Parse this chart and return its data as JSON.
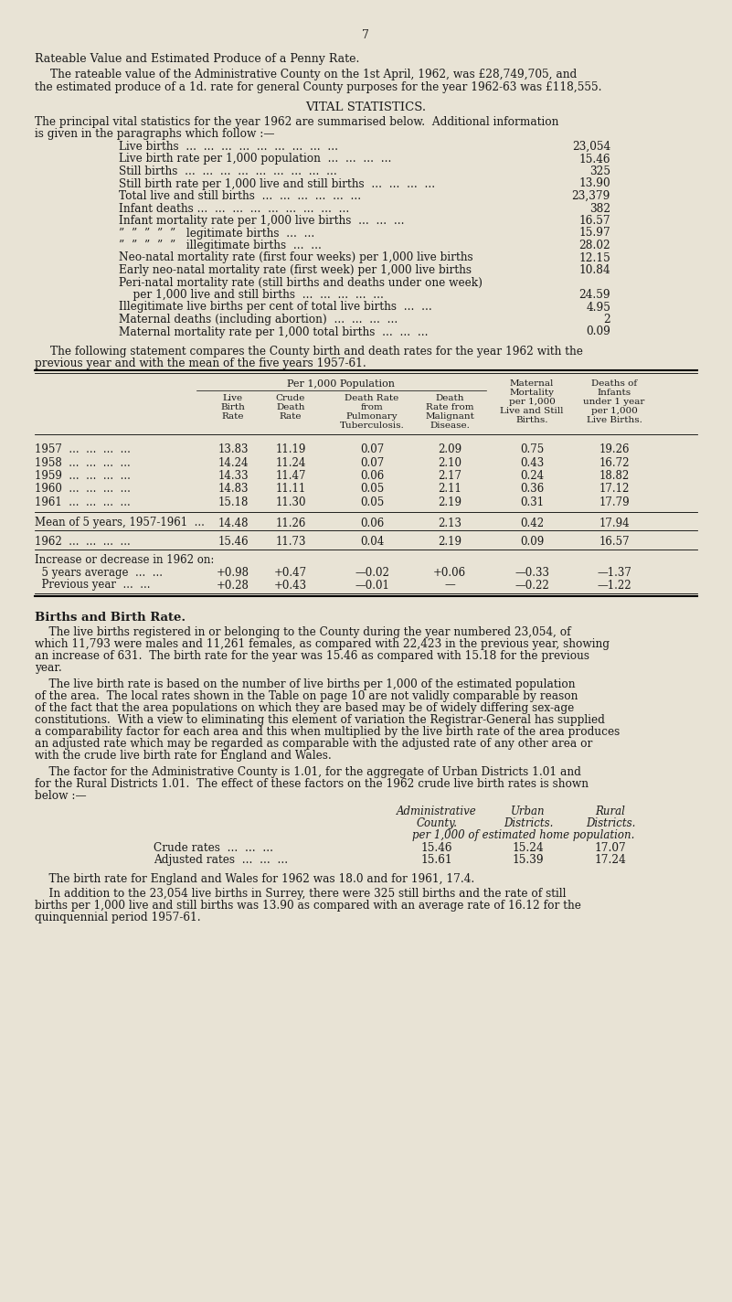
{
  "page_number": "7",
  "bg_color": "#e8e3d5",
  "text_color": "#1a1a1a",
  "section1_heading": "Rateable Value and Estimated Produce of a Penny Rate.",
  "section1_para_line1": "The rateable value of the Administrative County on the 1st April, 1962, was £28,749,705, and",
  "section1_para_line2": "the estimated produce of a 1d. rate for general County purposes for the year 1962-63 was £118,555.",
  "section2_heading": "VITAL STATISTICS.",
  "section2_intro_line1": "The principal vital statistics for the year 1962 are summarised below.  Additional information",
  "section2_intro_line2": "is given in the paragraphs which follow :—",
  "vital_stats": [
    [
      "Live births  ...  ...  ...  ...  ...  ...  ...  ...  ...",
      "23,054"
    ],
    [
      "Live birth rate per 1,000 population  ...  ...  ...  ...",
      "15.46"
    ],
    [
      "Still births  ...  ...  ...  ...  ...  ...  ...  ...  ...",
      "325"
    ],
    [
      "Still birth rate per 1,000 live and still births  ...  ...  ...  ...",
      "13.90"
    ],
    [
      "Total live and still births  ...  ...  ...  ...  ...  ...",
      "23,379"
    ],
    [
      "Infant deaths ...  ...  ...  ...  ...  ...  ...  ...  ...",
      "382"
    ],
    [
      "Infant mortality rate per 1,000 live births  ...  ...  ...",
      "16.57"
    ],
    [
      "”  ”  ”  ”  ”   legitimate births  ...  ...",
      "15.97"
    ],
    [
      "”  ”  ”  ”  ”   illegitimate births  ...  ...",
      "28.02"
    ],
    [
      "Neo-natal mortality rate (first four weeks) per 1,000 live births",
      "12.15"
    ],
    [
      "Early neo-natal mortality rate (first week) per 1,000 live births",
      "10.84"
    ],
    [
      "Peri-natal mortality rate (still births and deaths under one week)",
      ""
    ],
    [
      "    per 1,000 live and still births  ...  ...  ...  ...  ...",
      "24.59"
    ],
    [
      "Illegitimate live births per cent of total live births  ...  ...",
      "4.95"
    ],
    [
      "Maternal deaths (including abortion)  ...  ...  ...  ...",
      "2"
    ],
    [
      "Maternal mortality rate per 1,000 total births  ...  ...  ...",
      "0.09"
    ]
  ],
  "table_intro_line1": "The following statement compares the County birth and death rates for the year 1962 with the",
  "table_intro_line2": "previous year and with the mean of the five years 1957-61.",
  "table_rows": [
    [
      "1957  ...  ...  ...  ...",
      "13.83",
      "11.19",
      "0.07",
      "2.09",
      "0.75",
      "19.26"
    ],
    [
      "1958  ...  ...  ...  ...",
      "14.24",
      "11.24",
      "0.07",
      "2.10",
      "0.43",
      "16.72"
    ],
    [
      "1959  ...  ...  ...  ...",
      "14.33",
      "11.47",
      "0.06",
      "2.17",
      "0.24",
      "18.82"
    ],
    [
      "1960  ...  ...  ...  ...",
      "14.83",
      "11.11",
      "0.05",
      "2.11",
      "0.36",
      "17.12"
    ],
    [
      "1961  ...  ...  ...  ...",
      "15.18",
      "11.30",
      "0.05",
      "2.19",
      "0.31",
      "17.79"
    ]
  ],
  "mean_row": [
    "Mean of 5 years, 1957-1961  ...",
    "14.48",
    "11.26",
    "0.06",
    "2.13",
    "0.42",
    "17.94"
  ],
  "year_1962_row": [
    "1962  ...  ...  ...  ...",
    "15.46",
    "11.73",
    "0.04",
    "2.19",
    "0.09",
    "16.57"
  ],
  "increase_rows": [
    [
      "Increase or decrease in 1962 on:",
      "",
      "",
      "",
      "",
      "",
      ""
    ],
    [
      "  5 years average  ...  ...",
      "+0.98",
      "+0.47",
      "—0.02",
      "+0.06",
      "—0.33",
      "—1.37"
    ],
    [
      "  Previous year  ...  ...",
      "+0.28",
      "+0.43",
      "—0.01",
      "—",
      "—0.22",
      "—1.22"
    ]
  ],
  "births_heading": "Births and Birth Rate.",
  "births_para1_lines": [
    "    The live births registered in or belonging to the County during the year numbered 23,054, of",
    "which 11,793 were males and 11,261 females, as compared with 22,423 in the previous year, showing",
    "an increase of 631.  The birth rate for the year was 15.46 as compared with 15.18 for the previous",
    "year."
  ],
  "births_para2_lines": [
    "    The live birth rate is based on the number of live births per 1,000 of the estimated population",
    "of the area.  The local rates shown in the Table on page 10 are not validly comparable by reason",
    "of the fact that the area populations on which they are based may be of widely differing sex-age",
    "constitutions.  With a view to eliminating this element of variation the Registrar-General has supplied",
    "a comparability factor for each area and this when multiplied by the live birth rate of the area produces",
    "an adjusted rate which may be regarded as comparable with the adjusted rate of any other area or",
    "with the crude live birth rate for England and Wales."
  ],
  "births_para3_lines": [
    "    The factor for the Administrative County is 1.01, for the aggregate of Urban Districts 1.01 and",
    "for the Rural Districts 1.01.  The effect of these factors on the 1962 crude live birth rates is shown",
    "below :—"
  ],
  "rates_rows": [
    [
      "Crude rates  ...  ...  ...",
      "15.46",
      "15.24",
      "17.07"
    ],
    [
      "Adjusted rates  ...  ...  ...",
      "15.61",
      "15.39",
      "17.24"
    ]
  ],
  "births_para4": "    The birth rate for England and Wales for 1962 was 18.0 and for 1961, 17.4.",
  "births_para5_lines": [
    "    In addition to the 23,054 live births in Surrey, there were 325 still births and the rate of still",
    "births per 1,000 live and still births was 13.90 as compared with an average rate of 16.12 for the",
    "quinquennial period 1957-61."
  ]
}
